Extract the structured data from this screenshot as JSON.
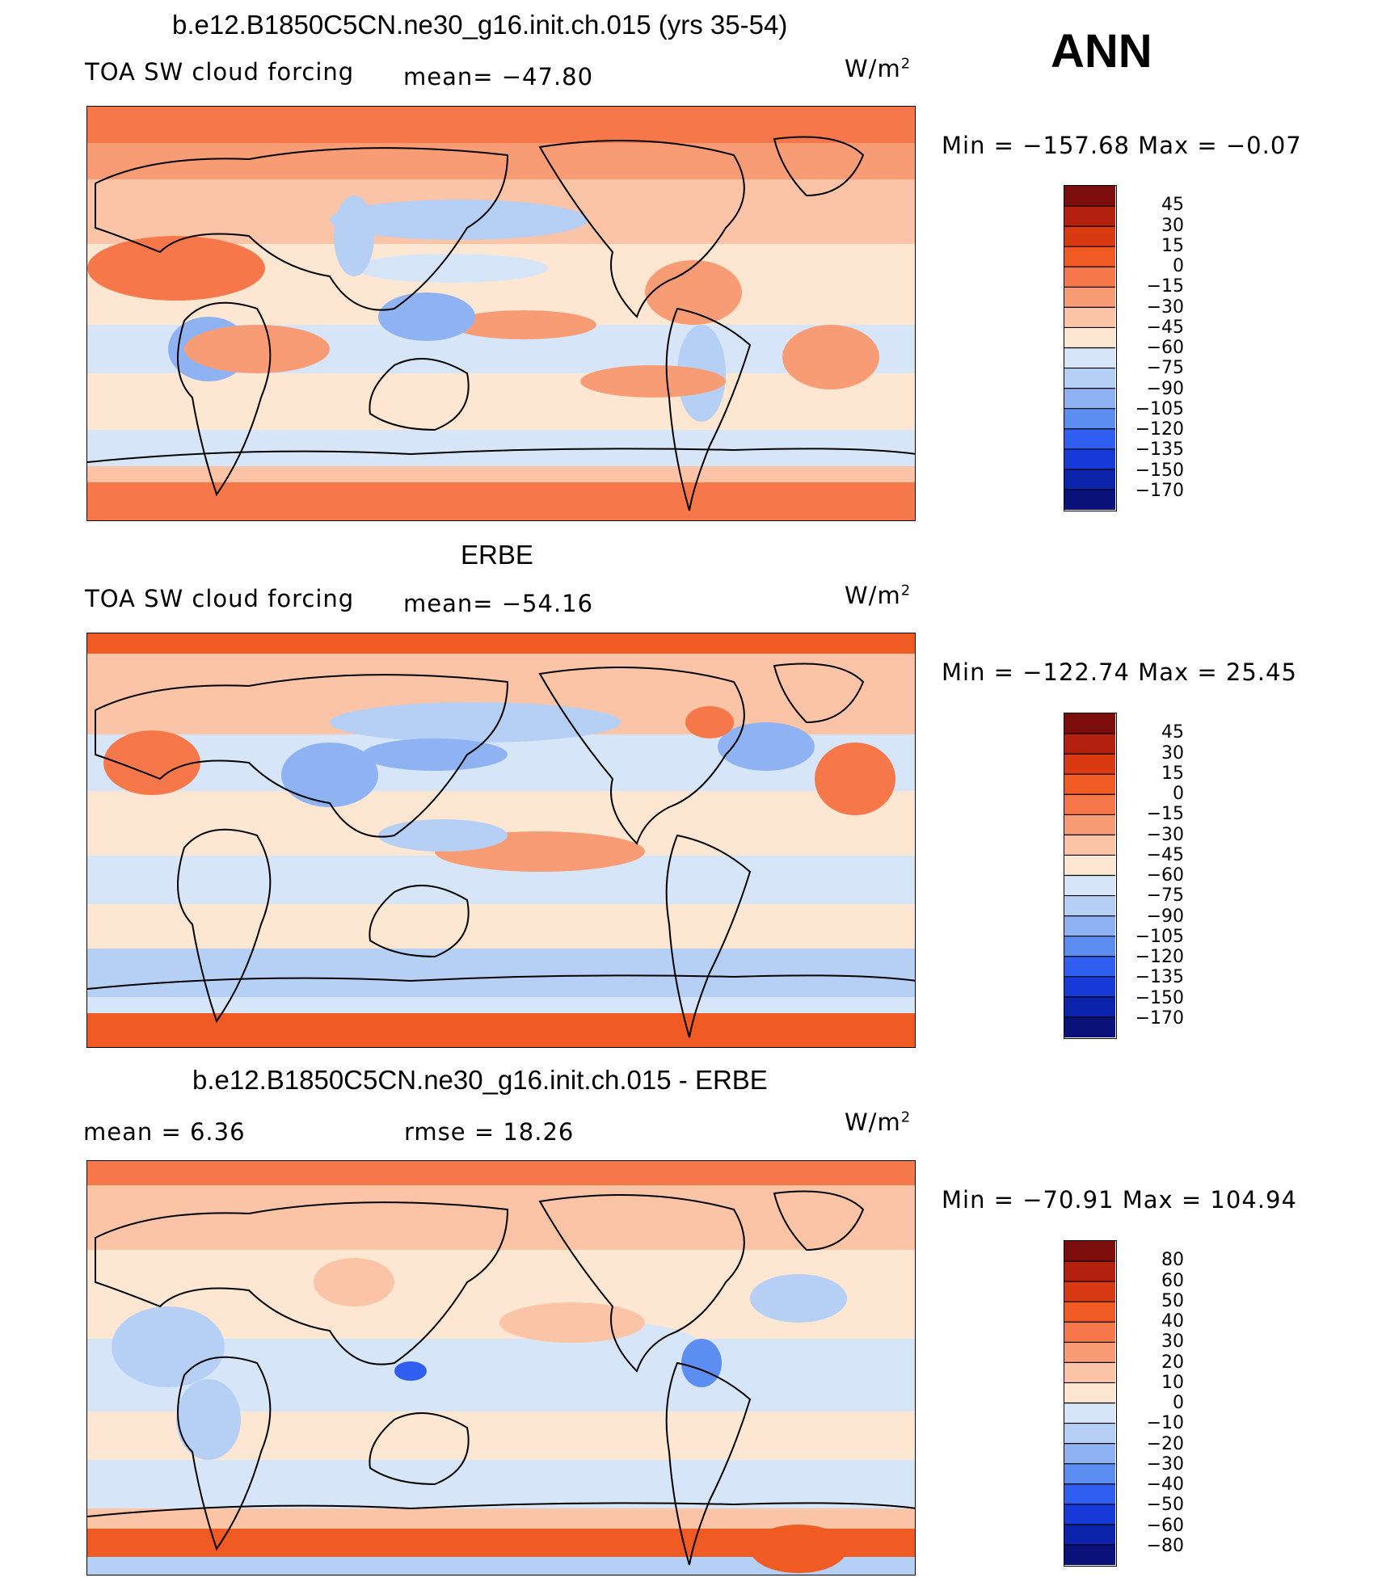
{
  "ann_label": "ANN",
  "panels": [
    {
      "title": "b.e12.B1850C5CN.ne30_g16.init.ch.015 (yrs 35-54)",
      "variable": "TOA SW cloud forcing",
      "stat1": "mean=  −47.80",
      "stat2": "",
      "units": "W/m",
      "units_exp": "2",
      "minmax": "Min  =  −157.68  Max  =    −0.07",
      "colorbar_levels": [
        "45",
        "30",
        "15",
        "0",
        "−15",
        "−30",
        "−45",
        "−60",
        "−75",
        "−90",
        "−105",
        "−120",
        "−135",
        "−150",
        "−170"
      ],
      "colorbar_colors": [
        "#7b0d0d",
        "#b3200e",
        "#d93a12",
        "#f05a23",
        "#f6784a",
        "#f89c76",
        "#fbc4a6",
        "#fde6d2",
        "#d6e6f8",
        "#b6cff5",
        "#8fb3f2",
        "#5b8ef0",
        "#2f5ef0",
        "#1639d8",
        "#0b23ab",
        "#0a127a"
      ],
      "chart_data": {
        "type": "heatmap",
        "title": "b.e12.B1850C5CN.ne30_g16.init.ch.015 (yrs 35-54)",
        "field": "TOA SW cloud forcing",
        "units": "W/m2",
        "mean": -47.8,
        "min": -157.68,
        "max": -0.07,
        "levels": [
          45,
          30,
          15,
          0,
          -15,
          -30,
          -45,
          -60,
          -75,
          -90,
          -105,
          -120,
          -135,
          -150,
          -170
        ]
      }
    },
    {
      "title": "ERBE",
      "variable": "TOA SW cloud forcing",
      "stat1": "mean=  −54.16",
      "stat2": "",
      "units": "W/m",
      "units_exp": "2",
      "minmax": "Min  =  −122.74  Max  =    25.45",
      "colorbar_levels": [
        "45",
        "30",
        "15",
        "0",
        "−15",
        "−30",
        "−45",
        "−60",
        "−75",
        "−90",
        "−105",
        "−120",
        "−135",
        "−150",
        "−170"
      ],
      "colorbar_colors": [
        "#7b0d0d",
        "#b3200e",
        "#d93a12",
        "#f05a23",
        "#f6784a",
        "#f89c76",
        "#fbc4a6",
        "#fde6d2",
        "#d6e6f8",
        "#b6cff5",
        "#8fb3f2",
        "#5b8ef0",
        "#2f5ef0",
        "#1639d8",
        "#0b23ab",
        "#0a127a"
      ],
      "chart_data": {
        "type": "heatmap",
        "title": "ERBE",
        "field": "TOA SW cloud forcing",
        "units": "W/m2",
        "mean": -54.16,
        "min": -122.74,
        "max": 25.45,
        "levels": [
          45,
          30,
          15,
          0,
          -15,
          -30,
          -45,
          -60,
          -75,
          -90,
          -105,
          -120,
          -135,
          -150,
          -170
        ]
      }
    },
    {
      "title": "b.e12.B1850C5CN.ne30_g16.init.ch.015 - ERBE",
      "variable": "",
      "stat1": "mean  =     6.36",
      "stat2": "rmse  =    18.26",
      "units": "W/m",
      "units_exp": "2",
      "minmax": "Min  =  −70.91  Max  =  104.94",
      "colorbar_levels": [
        "80",
        "60",
        "50",
        "40",
        "30",
        "20",
        "10",
        "0",
        "−10",
        "−20",
        "−30",
        "−40",
        "−50",
        "−60",
        "−80"
      ],
      "colorbar_colors": [
        "#7b0d0d",
        "#b3200e",
        "#d93a12",
        "#f05a23",
        "#f6784a",
        "#f89c76",
        "#fbc4a6",
        "#fde6d2",
        "#d6e6f8",
        "#b6cff5",
        "#8fb3f2",
        "#5b8ef0",
        "#2f5ef0",
        "#1639d8",
        "#0b23ab",
        "#0a127a"
      ],
      "chart_data": {
        "type": "heatmap",
        "title": "b.e12.B1850C5CN.ne30_g16.init.ch.015 - ERBE",
        "field": "difference",
        "units": "W/m2",
        "mean": 6.36,
        "rmse": 18.26,
        "min": -70.91,
        "max": 104.94,
        "levels": [
          80,
          60,
          50,
          40,
          30,
          20,
          10,
          0,
          -10,
          -20,
          -30,
          -40,
          -50,
          -60,
          -80
        ]
      }
    }
  ],
  "chart_data": [
    {
      "type": "heatmap",
      "title": "b.e12.B1850C5CN.ne30_g16.init.ch.015 (yrs 35-54)",
      "mean": -47.8,
      "min": -157.68,
      "max": -0.07
    },
    {
      "type": "heatmap",
      "title": "ERBE",
      "mean": -54.16,
      "min": -122.74,
      "max": 25.45
    },
    {
      "type": "heatmap",
      "title": "b.e12.B1850C5CN.ne30_g16.init.ch.015 - ERBE",
      "mean": 6.36,
      "rmse": 18.26,
      "min": -70.91,
      "max": 104.94
    }
  ]
}
